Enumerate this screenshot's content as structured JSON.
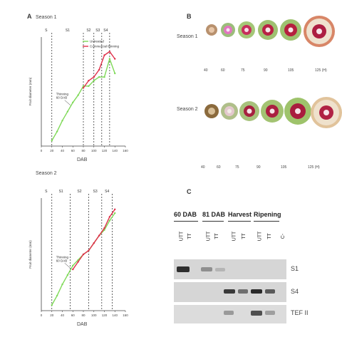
{
  "panels": {
    "a": {
      "letter": "A",
      "top_chart": {
        "title": "Season 1",
        "xlabel": "DAB",
        "ylabel": "Fruit diameter (mm)",
        "stage_labels": [
          "S",
          "S1",
          "S2",
          "S3",
          "S4"
        ],
        "annotation": "Thinning\n60 DAB",
        "legend": [
          "Untreated",
          "Commercial thinning"
        ],
        "xticks": [
          "0",
          "20",
          "40",
          "60",
          "80",
          "100",
          "120",
          "140",
          "160"
        ]
      },
      "bottom_chart": {
        "title": "Season 2",
        "xlabel": "DAB",
        "ylabel": "Fruit diameter (mm)",
        "stage_labels": [
          "S",
          "S1",
          "S2",
          "S3",
          "S4"
        ],
        "annotation": "Thinning\n60 DAB",
        "xticks": [
          "0",
          "20",
          "40",
          "60",
          "80",
          "100",
          "120",
          "140",
          "160"
        ]
      }
    },
    "b": {
      "letter": "B",
      "row1_label": "Season 1",
      "row2_label": "Season 2",
      "row1_captions": [
        "40",
        "60",
        "75",
        "90",
        "105",
        "125 (H)"
      ],
      "row2_captions": [
        "40",
        "60",
        "75",
        "90",
        "105",
        "125 (H)"
      ]
    },
    "c": {
      "letter": "C",
      "groups": [
        "60 DAB",
        "81 DAB",
        "Harvest",
        "Ripening"
      ],
      "lanes": [
        "UTT",
        "TT",
        "UTT",
        "TT",
        "UTT",
        "TT",
        "UTT",
        "TT",
        "C-"
      ],
      "rows": [
        "S1",
        "S4",
        "TEF II"
      ]
    }
  },
  "chart_data": [
    {
      "type": "line",
      "title": "Season 1",
      "xlabel": "DAB",
      "ylabel": "Fruit diameter (mm)",
      "xlim": [
        0,
        160
      ],
      "ylim": [
        0,
        60
      ],
      "series": [
        {
          "name": "Untreated",
          "color": "#7ed957",
          "x": [
            20,
            30,
            40,
            50,
            60,
            70,
            80,
            90,
            100,
            110,
            120,
            130,
            140
          ],
          "y": [
            3,
            8,
            14,
            19,
            24,
            28,
            33,
            33,
            36,
            38,
            38,
            48,
            40
          ]
        },
        {
          "name": "Commercial thinning",
          "color": "#e0304a",
          "x": [
            80,
            90,
            100,
            110,
            120,
            130,
            140
          ],
          "y": [
            32,
            36,
            38,
            42,
            50,
            52,
            48
          ]
        }
      ],
      "vlines_x": [
        20,
        80,
        100,
        115,
        130
      ]
    },
    {
      "type": "line",
      "title": "Season 2",
      "xlabel": "DAB",
      "ylabel": "Fruit diameter (mm)",
      "xlim": [
        0,
        160
      ],
      "ylim": [
        0,
        60
      ],
      "series": [
        {
          "name": "Untreated",
          "color": "#7ed957",
          "x": [
            20,
            30,
            40,
            50,
            60,
            70,
            80,
            90,
            100,
            110,
            120,
            130,
            140
          ],
          "y": [
            3,
            8,
            14,
            19,
            24,
            27,
            30,
            32,
            36,
            40,
            43,
            48,
            52
          ]
        },
        {
          "name": "Commercial thinning",
          "color": "#e0304a",
          "x": [
            60,
            70,
            80,
            90,
            100,
            110,
            120,
            130,
            140
          ],
          "y": [
            22,
            26,
            30,
            32,
            36,
            40,
            44,
            50,
            54
          ]
        }
      ],
      "vlines_x": [
        20,
        55,
        90,
        115,
        135
      ]
    }
  ]
}
